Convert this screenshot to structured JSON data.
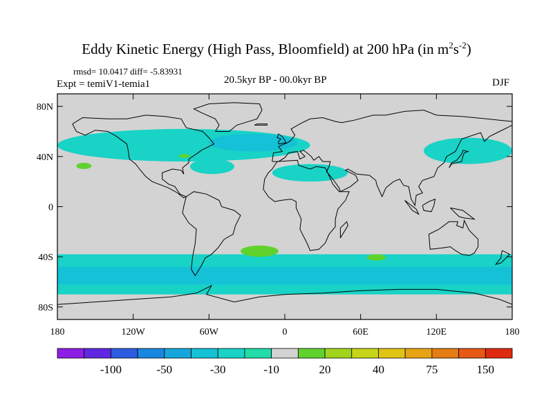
{
  "figure": {
    "title_main": "Eddy Kinetic Energy (High Pass, Bloomfield) at 200 hPa (in m",
    "title_sup1": "2",
    "title_mid": "s",
    "title_sup2": "-2",
    "title_end": ")",
    "stats": "rmsd= 10.0417 diff= -5.83931",
    "experiment": "Expt = temiV1-temia1",
    "period": "20.5kyr BP - 00.0kyr BP",
    "season": "DJF"
  },
  "chart_data": {
    "type": "heatmap",
    "projection": "cylindrical-equidistant",
    "xlim": [
      -180,
      180
    ],
    "ylim": [
      -90,
      90
    ],
    "x_ticks": [
      {
        "value": -180,
        "label": "180"
      },
      {
        "value": -120,
        "label": "120W"
      },
      {
        "value": -60,
        "label": "60W"
      },
      {
        "value": 0,
        "label": "0"
      },
      {
        "value": 60,
        "label": "60E"
      },
      {
        "value": 120,
        "label": "120E"
      },
      {
        "value": 180,
        "label": "180"
      }
    ],
    "y_ticks": [
      {
        "value": 80,
        "label": "80N"
      },
      {
        "value": 40,
        "label": "40N"
      },
      {
        "value": 0,
        "label": "0"
      },
      {
        "value": -40,
        "label": "40S"
      },
      {
        "value": -80,
        "label": "80S"
      }
    ],
    "background_color": "#d3d3d3",
    "colorbar": {
      "colors": [
        "#8e1ee6",
        "#5f28e0",
        "#2d5ce0",
        "#1a86e0",
        "#16a6dc",
        "#14c1d6",
        "#18d3c6",
        "#22dcaa",
        "#d3d3d3",
        "#60d22e",
        "#a0d41e",
        "#c8d418",
        "#e0c414",
        "#e6a414",
        "#e67c14",
        "#e65814",
        "#e02a10"
      ],
      "labels": [
        "-100",
        "-50",
        "-30",
        "-10",
        "20",
        "40",
        "75",
        "150"
      ],
      "label_boundary_index": [
        2,
        4,
        6,
        8,
        10,
        12,
        14,
        16
      ]
    },
    "regions": [
      {
        "name": "north-pacific-atlantic-band",
        "color": "#18d3c6",
        "lon_range": [
          -180,
          20
        ],
        "lat_range": [
          36,
          62
        ]
      },
      {
        "name": "north-atlantic-core",
        "color": "#14c1d6",
        "lon_range": [
          -60,
          10
        ],
        "lat_range": [
          44,
          58
        ]
      },
      {
        "name": "north-asia-pacific-band",
        "color": "#18d3c6",
        "lon_range": [
          110,
          180
        ],
        "lat_range": [
          34,
          55
        ]
      },
      {
        "name": "subtropical-atlantic-patch",
        "color": "#18d3c6",
        "lon_range": [
          -75,
          -40
        ],
        "lat_range": [
          26,
          38
        ]
      },
      {
        "name": "mediterranean-band",
        "color": "#18d3c6",
        "lon_range": [
          -10,
          50
        ],
        "lat_range": [
          20,
          34
        ]
      },
      {
        "name": "southern-ocean-band",
        "color": "#18d3c6",
        "lon_range": [
          -180,
          180
        ],
        "lat_range": [
          -70,
          -38
        ]
      },
      {
        "name": "southern-ocean-core",
        "color": "#14c1d6",
        "lon_range": [
          -180,
          180
        ],
        "lat_range": [
          -62,
          -48
        ]
      },
      {
        "name": "south-atlantic-positive",
        "color": "#60d22e",
        "lon_range": [
          -35,
          -5
        ],
        "lat_range": [
          -40,
          -31
        ]
      },
      {
        "name": "south-indian-positive",
        "color": "#60d22e",
        "lon_range": [
          65,
          80
        ],
        "lat_range": [
          -43,
          -38
        ]
      },
      {
        "name": "north-pacific-positive",
        "color": "#60d22e",
        "lon_range": [
          -165,
          -153
        ],
        "lat_range": [
          30,
          35
        ]
      },
      {
        "name": "us-east-positive",
        "color": "#60d22e",
        "lon_range": [
          -84,
          -75
        ],
        "lat_range": [
          39,
          42
        ]
      }
    ]
  }
}
